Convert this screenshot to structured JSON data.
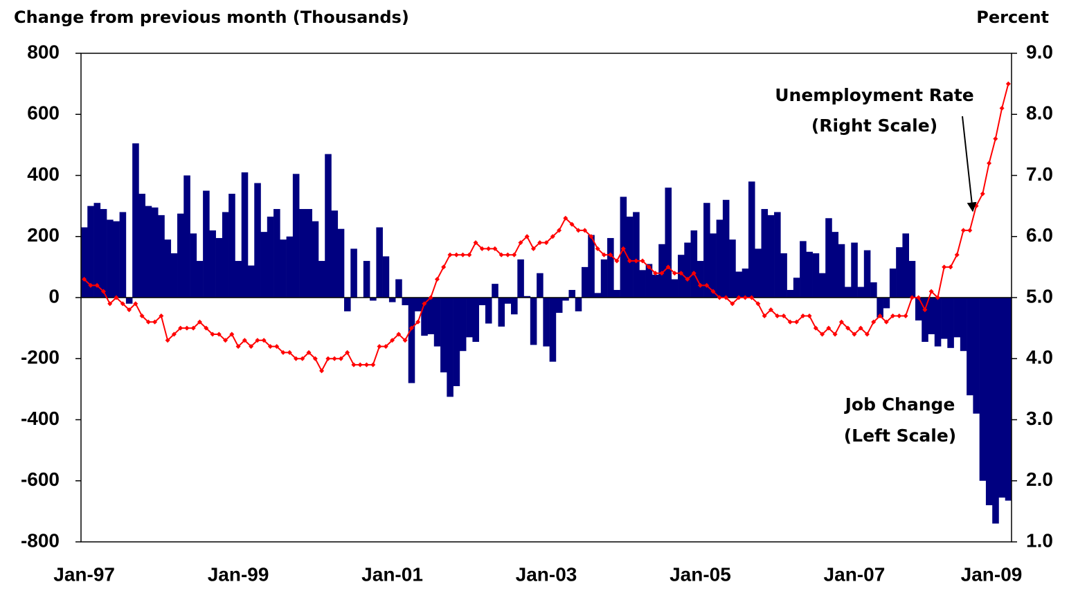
{
  "chart_data": {
    "type": "bar",
    "y_axis_title": "Change from previous month (Thousands)",
    "y2_axis_title": "Percent",
    "categories": [
      "Jan-97",
      null,
      null,
      null,
      null,
      null,
      null,
      null,
      null,
      null,
      null,
      null,
      null,
      null,
      null,
      null,
      null,
      null,
      null,
      null,
      null,
      null,
      null,
      null,
      "Jan-99",
      null,
      null,
      null,
      null,
      null,
      null,
      null,
      null,
      null,
      null,
      null,
      null,
      null,
      null,
      null,
      null,
      null,
      null,
      null,
      null,
      null,
      null,
      null,
      "Jan-01",
      null,
      null,
      null,
      null,
      null,
      null,
      null,
      null,
      null,
      null,
      null,
      null,
      null,
      null,
      null,
      null,
      null,
      null,
      null,
      null,
      null,
      null,
      null,
      "Jan-03",
      null,
      null,
      null,
      null,
      null,
      null,
      null,
      null,
      null,
      null,
      null,
      null,
      null,
      null,
      null,
      null,
      null,
      null,
      null,
      null,
      null,
      null,
      null,
      "Jan-05",
      null,
      null,
      null,
      null,
      null,
      null,
      null,
      null,
      null,
      null,
      null,
      null,
      null,
      null,
      null,
      null,
      null,
      null,
      null,
      null,
      null,
      null,
      null,
      "Jan-07",
      null,
      null,
      null,
      null,
      null,
      null,
      null,
      null,
      null,
      null,
      null,
      null,
      null,
      null,
      null,
      null,
      null,
      null,
      null,
      null,
      null,
      null,
      null,
      "Jan-09"
    ],
    "series": [
      {
        "name": "Job Change",
        "note": "(Left Scale)",
        "type": "bar",
        "color": "#000080",
        "values": [
          230,
          300,
          310,
          290,
          255,
          250,
          280,
          -20,
          505,
          340,
          300,
          295,
          270,
          190,
          145,
          275,
          400,
          210,
          120,
          350,
          220,
          195,
          280,
          340,
          120,
          410,
          105,
          375,
          215,
          265,
          290,
          190,
          200,
          405,
          290,
          290,
          250,
          120,
          470,
          285,
          225,
          -45,
          160,
          0,
          120,
          -10,
          230,
          135,
          -15,
          60,
          -25,
          -280,
          -45,
          -125,
          -120,
          -160,
          -245,
          -325,
          -290,
          -175,
          -130,
          -145,
          -25,
          -85,
          45,
          -95,
          -20,
          -55,
          125,
          5,
          -155,
          80,
          -160,
          -210,
          -50,
          -10,
          25,
          -45,
          100,
          205,
          15,
          125,
          195,
          25,
          330,
          265,
          280,
          90,
          110,
          75,
          175,
          360,
          60,
          140,
          180,
          220,
          120,
          310,
          210,
          255,
          320,
          190,
          85,
          95,
          380,
          160,
          290,
          270,
          280,
          145,
          25,
          65,
          185,
          150,
          145,
          80,
          260,
          215,
          175,
          35,
          180,
          35,
          155,
          50,
          -65,
          -35,
          95,
          165,
          210,
          120,
          -75,
          -145,
          -120,
          -160,
          -135,
          -165,
          -130,
          -175,
          -320,
          -380,
          -600,
          -680,
          -740,
          -655,
          -665
        ]
      },
      {
        "name": "Unemployment Rate",
        "note": "(Right Scale)",
        "type": "line",
        "axis": "y2",
        "color": "#ff0000",
        "values": [
          5.3,
          5.2,
          5.2,
          5.1,
          4.9,
          5.0,
          4.9,
          4.8,
          4.9,
          4.7,
          4.6,
          4.6,
          4.7,
          4.3,
          4.4,
          4.5,
          4.5,
          4.5,
          4.6,
          4.5,
          4.4,
          4.4,
          4.3,
          4.4,
          4.2,
          4.3,
          4.2,
          4.3,
          4.3,
          4.2,
          4.2,
          4.1,
          4.1,
          4.0,
          4.0,
          4.1,
          4.0,
          3.8,
          4.0,
          4.0,
          4.0,
          4.1,
          3.9,
          3.9,
          3.9,
          3.9,
          4.2,
          4.2,
          4.3,
          4.4,
          4.3,
          4.5,
          4.6,
          4.9,
          5.0,
          5.3,
          5.5,
          5.7,
          5.7,
          5.7,
          5.7,
          5.9,
          5.8,
          5.8,
          5.8,
          5.7,
          5.7,
          5.7,
          5.9,
          6.0,
          5.8,
          5.9,
          5.9,
          6.0,
          6.1,
          6.3,
          6.2,
          6.1,
          6.1,
          6.0,
          5.8,
          5.7,
          5.7,
          5.6,
          5.8,
          5.6,
          5.6,
          5.6,
          5.5,
          5.4,
          5.4,
          5.5,
          5.4,
          5.4,
          5.3,
          5.4,
          5.2,
          5.2,
          5.1,
          5.0,
          5.0,
          4.9,
          5.0,
          5.0,
          5.0,
          4.9,
          4.7,
          4.8,
          4.7,
          4.7,
          4.6,
          4.6,
          4.7,
          4.7,
          4.5,
          4.4,
          4.5,
          4.4,
          4.6,
          4.5,
          4.4,
          4.5,
          4.4,
          4.6,
          4.7,
          4.6,
          4.7,
          4.7,
          4.7,
          5.0,
          5.0,
          4.8,
          5.1,
          5.0,
          5.5,
          5.5,
          5.7,
          6.1,
          6.1,
          6.5,
          6.7,
          7.2,
          7.6,
          8.1,
          8.5
        ]
      }
    ],
    "ylim": [
      -800,
      800
    ],
    "yticks": [
      -800,
      -600,
      -400,
      -200,
      0,
      200,
      400,
      600,
      800
    ],
    "y2lim": [
      1,
      9
    ],
    "y2ticks": [
      {
        "value": 1,
        "label": "1.0"
      },
      {
        "value": 2,
        "label": "2.0"
      },
      {
        "value": 3,
        "label": "3.0"
      },
      {
        "value": 4,
        "label": "4.0"
      },
      {
        "value": 5,
        "label": "5.0"
      },
      {
        "value": 6,
        "label": "6.0"
      },
      {
        "value": 7,
        "label": "7.0"
      },
      {
        "value": 8,
        "label": "8.0"
      },
      {
        "value": 9,
        "label": "9.0"
      }
    ],
    "grid": false
  }
}
